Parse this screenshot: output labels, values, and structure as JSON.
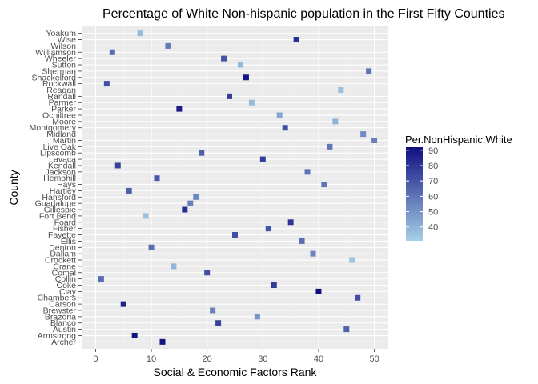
{
  "chart_data": {
    "type": "scatter",
    "title": "Percentage of White Non-hispanic population in the First Fifty Counties",
    "xlabel": "Social & Economic Factors Rank",
    "ylabel": "County",
    "xlim": [
      -2.5,
      52.5
    ],
    "x_ticks": [
      0,
      10,
      20,
      30,
      40,
      50
    ],
    "grid": true,
    "legend": {
      "title": "Per.NonHispanic.White",
      "placement": "right",
      "min": 31,
      "max": 92,
      "ticks": [
        40,
        50,
        60,
        70,
        80,
        90
      ],
      "color_low": "#a6d0e6",
      "color_high": "#0f0f80"
    },
    "points": [
      {
        "county": "Archer",
        "x": 12,
        "value": 90
      },
      {
        "county": "Armstrong",
        "x": 7,
        "value": 91
      },
      {
        "county": "Austin",
        "x": 45,
        "value": 66
      },
      {
        "county": "Blanco",
        "x": 22,
        "value": 76
      },
      {
        "county": "Brazoria",
        "x": 29,
        "value": 50
      },
      {
        "county": "Brewster",
        "x": 21,
        "value": 56
      },
      {
        "county": "Carson",
        "x": 5,
        "value": 86
      },
      {
        "county": "Chambers",
        "x": 47,
        "value": 72
      },
      {
        "county": "Clay",
        "x": 40,
        "value": 92
      },
      {
        "county": "Coke",
        "x": 32,
        "value": 78
      },
      {
        "county": "Collin",
        "x": 1,
        "value": 62
      },
      {
        "county": "Comal",
        "x": 20,
        "value": 72
      },
      {
        "county": "Crane",
        "x": 14,
        "value": 40
      },
      {
        "county": "Crockett",
        "x": 46,
        "value": 35
      },
      {
        "county": "Dallam",
        "x": 39,
        "value": 55
      },
      {
        "county": "Denton",
        "x": 10,
        "value": 62
      },
      {
        "county": "Ellis",
        "x": 37,
        "value": 62
      },
      {
        "county": "Fayette",
        "x": 25,
        "value": 72
      },
      {
        "county": "Fisher",
        "x": 31,
        "value": 70
      },
      {
        "county": "Foard",
        "x": 35,
        "value": 80
      },
      {
        "county": "Fort Bend",
        "x": 9,
        "value": 36
      },
      {
        "county": "Gillespie",
        "x": 16,
        "value": 82
      },
      {
        "county": "Guadalupe",
        "x": 17,
        "value": 56
      },
      {
        "county": "Hansford",
        "x": 18,
        "value": 54
      },
      {
        "county": "Hartley",
        "x": 6,
        "value": 67
      },
      {
        "county": "Hays",
        "x": 41,
        "value": 60
      },
      {
        "county": "Hemphill",
        "x": 11,
        "value": 69
      },
      {
        "county": "Jackson",
        "x": 38,
        "value": 60
      },
      {
        "county": "Kendall",
        "x": 4,
        "value": 76
      },
      {
        "county": "Lavaca",
        "x": 30,
        "value": 77
      },
      {
        "county": "Lipscomb",
        "x": 19,
        "value": 66
      },
      {
        "county": "Live Oak",
        "x": 42,
        "value": 60
      },
      {
        "county": "Martin",
        "x": 50,
        "value": 56
      },
      {
        "county": "Midland",
        "x": 48,
        "value": 53
      },
      {
        "county": "Montgomery",
        "x": 34,
        "value": 72
      },
      {
        "county": "Moore",
        "x": 43,
        "value": 40
      },
      {
        "county": "Ochiltree",
        "x": 33,
        "value": 44
      },
      {
        "county": "Parker",
        "x": 15,
        "value": 88
      },
      {
        "county": "Parmer",
        "x": 28,
        "value": 37
      },
      {
        "county": "Randall",
        "x": 24,
        "value": 77
      },
      {
        "county": "Reagan",
        "x": 44,
        "value": 36
      },
      {
        "county": "Rockwall",
        "x": 2,
        "value": 72
      },
      {
        "county": "Shackelford",
        "x": 27,
        "value": 90
      },
      {
        "county": "Sherman",
        "x": 49,
        "value": 60
      },
      {
        "county": "Sutton",
        "x": 26,
        "value": 38
      },
      {
        "county": "Wheeler",
        "x": 23,
        "value": 70
      },
      {
        "county": "Williamson",
        "x": 3,
        "value": 62
      },
      {
        "county": "Wilson",
        "x": 13,
        "value": 58
      },
      {
        "county": "Wise",
        "x": 36,
        "value": 82
      },
      {
        "county": "Yoakum",
        "x": 8,
        "value": 38
      }
    ]
  }
}
